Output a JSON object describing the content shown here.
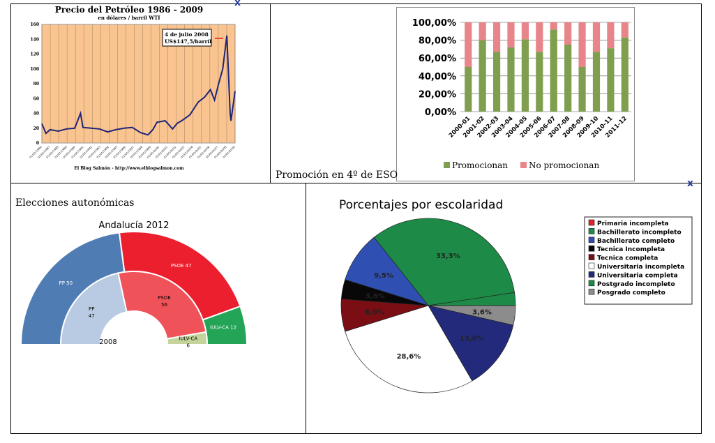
{
  "captions": {
    "bars": "Promoción en 4º de ESO",
    "elections": "Elecciones autonómicas"
  },
  "chart_data": [
    {
      "type": "line",
      "title": "Precio del Petróleo 1986 - 2009",
      "subtitle": "en dólares / barril WTI",
      "source": "El Blog Salmón - http://www.elblogsalmon.com",
      "annotation": [
        "4 de julio 2008",
        "US$147,5/barril"
      ],
      "ylim": [
        0,
        160
      ],
      "yticks": [
        0,
        20,
        40,
        60,
        80,
        100,
        120,
        140,
        160
      ],
      "x": [
        1986,
        1986.5,
        1987,
        1988,
        1989,
        1990,
        1990.7,
        1991,
        1992,
        1993,
        1994,
        1995,
        1996,
        1997,
        1998,
        1998.9,
        1999.5,
        2000,
        2001,
        2001.9,
        2002.5,
        2003,
        2004,
        2005,
        2005.8,
        2006.5,
        2007,
        2007.5,
        2008,
        2008.5,
        2008.9,
        2009,
        2009.5
      ],
      "values": [
        26,
        13,
        18,
        16,
        19,
        20,
        40,
        21,
        20,
        19,
        15,
        18,
        20,
        21,
        14,
        11,
        18,
        28,
        30,
        19,
        27,
        30,
        38,
        55,
        62,
        72,
        58,
        80,
        100,
        145,
        40,
        30,
        70
      ]
    },
    {
      "type": "bar",
      "stacked": true,
      "categories": [
        "2000-01",
        "2001-02",
        "2002-03",
        "2003-04",
        "2004-05",
        "2005-06",
        "2006-07",
        "2007-08",
        "2008-09",
        "2009-10",
        "2010-11",
        "2011-12"
      ],
      "series": [
        {
          "name": "Promocionan",
          "color": "#7f9f4e",
          "values": [
            50,
            80,
            67,
            72,
            81,
            67,
            92,
            75,
            50,
            67,
            71,
            83
          ]
        },
        {
          "name": "No promocionan",
          "color": "#e8858a",
          "values": [
            50,
            20,
            33,
            28,
            19,
            33,
            8,
            25,
            50,
            33,
            29,
            17
          ]
        }
      ],
      "ylim": [
        0,
        100
      ],
      "yticks": [
        "0,00%",
        "20,00%",
        "40,00%",
        "60,00%",
        "80,00%",
        "100,00%"
      ],
      "legend": "bottom"
    },
    {
      "type": "pie",
      "subtype": "half-donut",
      "title": "Andalucía 2012",
      "inner_label": "2008",
      "outer": [
        {
          "name": "PP 50",
          "value": 50,
          "color": "#4f7db3"
        },
        {
          "name": "PSOE 47",
          "value": 47,
          "color": "#ec1f2e"
        },
        {
          "name": "IULV-CA 12",
          "value": 12,
          "color": "#23a457"
        }
      ],
      "inner": [
        {
          "name": "PP",
          "seats": "47",
          "value": 47,
          "color": "#b8cbe2"
        },
        {
          "name": "PSOE",
          "seats": "56",
          "value": 56,
          "color": "#ef5258"
        },
        {
          "name": "IULV-CA",
          "seats": "6",
          "value": 6,
          "color": "#c3d59a"
        }
      ]
    },
    {
      "type": "pie",
      "title": "Porcentajes por escolaridad",
      "legend": "right",
      "slices": [
        {
          "name": "Primaria incompleta",
          "value": 0,
          "color": "#e4202a",
          "label": ""
        },
        {
          "name": "Bachillerato incompleto",
          "value": 33.3,
          "color": "#1d8a47",
          "label": "33,3%"
        },
        {
          "name": "Bachillerato completo",
          "value": 9.5,
          "color": "#2f4fb3",
          "label": "9,5%"
        },
        {
          "name": "Tecnica Incompleta",
          "value": 3.6,
          "color": "#080808",
          "label": "3,6%"
        },
        {
          "name": "Tecnica completa",
          "value": 6.0,
          "color": "#7a0e14",
          "label": "6,0%"
        },
        {
          "name": "Universitaria incompleta",
          "value": 28.6,
          "color": "#ffffff",
          "label": "28,6%"
        },
        {
          "name": "Universitaria completa",
          "value": 13.0,
          "color": "#232a7c",
          "label": "13,0%"
        },
        {
          "name": "Postgrado incompleto",
          "value": 2.4,
          "color": "#1d8a47",
          "label": ""
        },
        {
          "name": "Posgrado completo",
          "value": 3.6,
          "color": "#8c8c8c",
          "label": "3,6%"
        }
      ]
    }
  ]
}
